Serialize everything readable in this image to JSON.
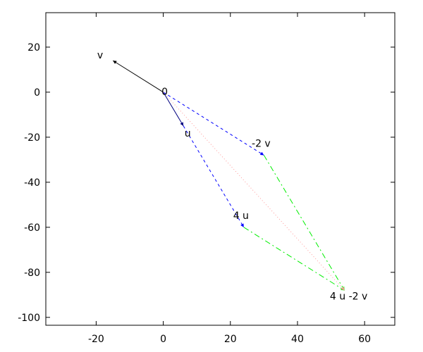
{
  "chart_data": {
    "type": "vector",
    "xlim": [
      -35,
      69
    ],
    "ylim": [
      -103.5,
      35.3
    ],
    "xticks": [
      -20,
      0,
      20,
      40,
      60
    ],
    "yticks": [
      -100,
      -80,
      -60,
      -40,
      -20,
      0,
      20
    ],
    "points": [
      {
        "label": "v",
        "x": -15,
        "y": 14
      },
      {
        "label": "0",
        "x": 0,
        "y": 0
      },
      {
        "label": "u",
        "x": 6,
        "y": -15
      },
      {
        "label": "-2 v",
        "x": 30,
        "y": -28
      },
      {
        "label": "4 u",
        "x": 24,
        "y": -60
      },
      {
        "label": "4 u -2 v",
        "x": 54,
        "y": -88
      }
    ],
    "segments": [
      {
        "x": [
          0,
          -15
        ],
        "y": [
          0,
          14
        ],
        "color": "#000000",
        "dash": "solid"
      },
      {
        "x": [
          0,
          6
        ],
        "y": [
          0,
          -15
        ],
        "color": "#00007f",
        "dash": "solid"
      },
      {
        "x": [
          0,
          30
        ],
        "y": [
          0,
          -28
        ],
        "color": "#0000ff",
        "dash": "dashed"
      },
      {
        "x": [
          6,
          24
        ],
        "y": [
          -15,
          -60
        ],
        "color": "#0000ff",
        "dash": "dashed"
      },
      {
        "x": [
          30,
          54
        ],
        "y": [
          -28,
          -88
        ],
        "color": "#00ee00",
        "dash": "dashdot"
      },
      {
        "x": [
          24,
          54
        ],
        "y": [
          -60,
          -88
        ],
        "color": "#00ee00",
        "dash": "dashdot"
      },
      {
        "x": [
          0,
          54
        ],
        "y": [
          0,
          -88
        ],
        "color": "#ff9999",
        "dash": "dotted"
      }
    ]
  }
}
